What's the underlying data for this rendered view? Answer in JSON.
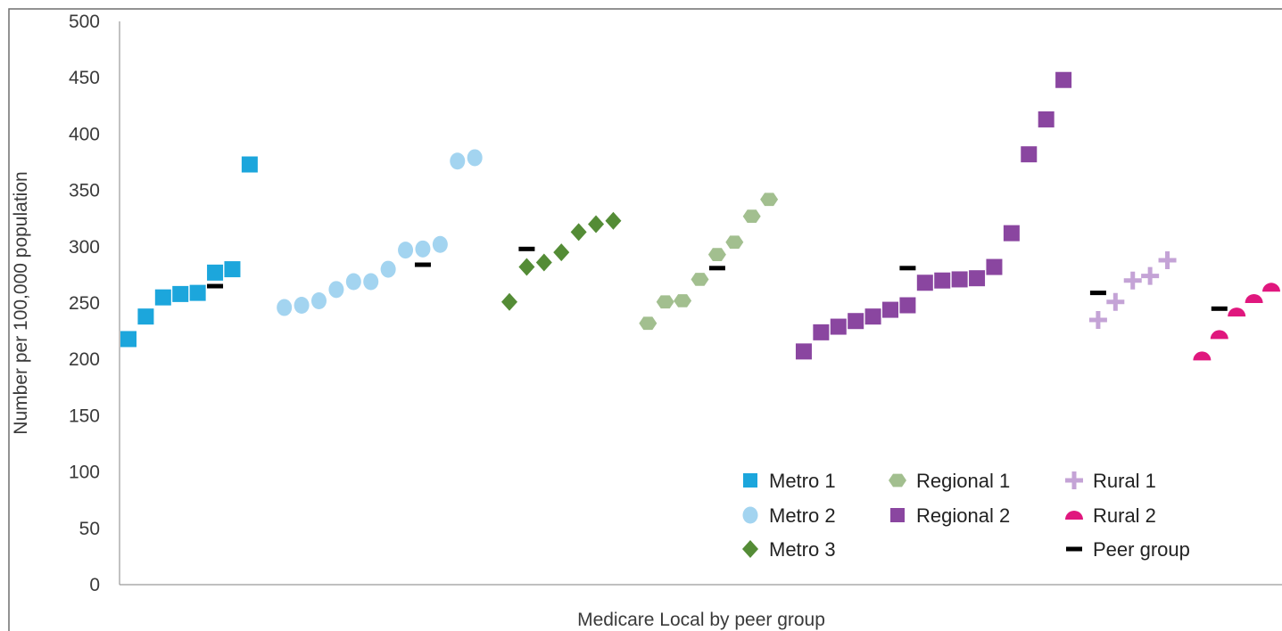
{
  "chart_data": {
    "type": "scatter",
    "title": "",
    "xlabel": "Medicare Local by peer group",
    "ylabel": "Number per 100,000 population",
    "ylim": [
      0,
      500
    ],
    "yticks": [
      0,
      50,
      100,
      150,
      200,
      250,
      300,
      350,
      400,
      450,
      500
    ],
    "xlim": [
      0.5,
      67.5
    ],
    "grid": false,
    "legend_position": "bottom-right",
    "series": [
      {
        "name": "Metro 1",
        "marker": "square",
        "color": "#1ca6dc",
        "points": [
          [
            1,
            218
          ],
          [
            2,
            238
          ],
          [
            3,
            255
          ],
          [
            4,
            258
          ],
          [
            5,
            259
          ],
          [
            6,
            277
          ],
          [
            7,
            280
          ],
          [
            8,
            373
          ]
        ]
      },
      {
        "name": "Metro 2",
        "marker": "ellipse",
        "color": "#a3d4f0",
        "points": [
          [
            10,
            246
          ],
          [
            11,
            248
          ],
          [
            12,
            252
          ],
          [
            13,
            262
          ],
          [
            14,
            269
          ],
          [
            15,
            269
          ],
          [
            16,
            280
          ],
          [
            17,
            297
          ],
          [
            18,
            298
          ],
          [
            19,
            302
          ],
          [
            20,
            376
          ],
          [
            21,
            379
          ]
        ]
      },
      {
        "name": "Metro 3",
        "marker": "diamond",
        "color": "#548c36",
        "points": [
          [
            23,
            251
          ],
          [
            24,
            282
          ],
          [
            25,
            286
          ],
          [
            26,
            295
          ],
          [
            27,
            313
          ],
          [
            28,
            320
          ],
          [
            29,
            323
          ]
        ]
      },
      {
        "name": "Regional 1",
        "marker": "hexagon",
        "color": "#a2bf8f",
        "points": [
          [
            31,
            232
          ],
          [
            32,
            251
          ],
          [
            33,
            252
          ],
          [
            34,
            271
          ],
          [
            35,
            293
          ],
          [
            36,
            304
          ],
          [
            37,
            327
          ],
          [
            38,
            342
          ]
        ]
      },
      {
        "name": "Regional 2",
        "marker": "square",
        "color": "#8a46a0",
        "points": [
          [
            40,
            207
          ],
          [
            41,
            224
          ],
          [
            42,
            229
          ],
          [
            43,
            234
          ],
          [
            44,
            238
          ],
          [
            45,
            244
          ],
          [
            46,
            248
          ],
          [
            47,
            268
          ],
          [
            48,
            270
          ],
          [
            49,
            271
          ],
          [
            50,
            272
          ],
          [
            51,
            282
          ],
          [
            52,
            312
          ],
          [
            53,
            382
          ],
          [
            54,
            413
          ],
          [
            55,
            448
          ]
        ]
      },
      {
        "name": "Rural 1",
        "marker": "plus",
        "color": "#c4a3d6",
        "points": [
          [
            57,
            235
          ],
          [
            58,
            251
          ],
          [
            59,
            270
          ],
          [
            60,
            274
          ],
          [
            61,
            288
          ]
        ]
      },
      {
        "name": "Rural 2",
        "marker": "semicircle",
        "color": "#e0177e",
        "points": [
          [
            63,
            203
          ],
          [
            64,
            222
          ],
          [
            65,
            242
          ],
          [
            66,
            254
          ],
          [
            67,
            264
          ]
        ]
      },
      {
        "name": "Peer group",
        "marker": "dash",
        "color": "#000000",
        "points": [
          [
            6,
            265
          ],
          [
            18,
            284
          ],
          [
            24,
            298
          ],
          [
            35,
            281
          ],
          [
            46,
            281
          ],
          [
            57,
            259
          ],
          [
            64,
            245
          ]
        ]
      }
    ],
    "legend": {
      "columns": [
        [
          "Metro 1",
          "Metro 2",
          "Metro 3"
        ],
        [
          "Regional 1",
          "Regional 2"
        ],
        [
          "Rural 1",
          "Rural 2",
          "Peer group"
        ]
      ]
    }
  }
}
